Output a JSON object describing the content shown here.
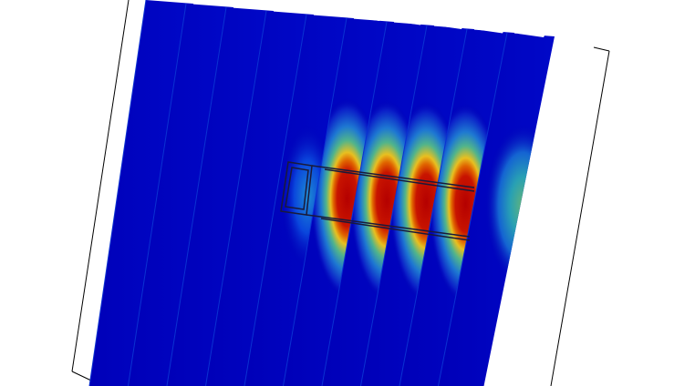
{
  "scene": {
    "description_visible_text": "",
    "slice_count": 10,
    "colormap": [
      "#0000b4",
      "#0050e6",
      "#1ea0c8",
      "#50b48c",
      "#c8c83c",
      "#f09600",
      "#d22800",
      "#b40000"
    ],
    "background_color": "#ffffff",
    "bounding_box_color": "#000000",
    "coil_outline_color": "#1a1a3a"
  }
}
